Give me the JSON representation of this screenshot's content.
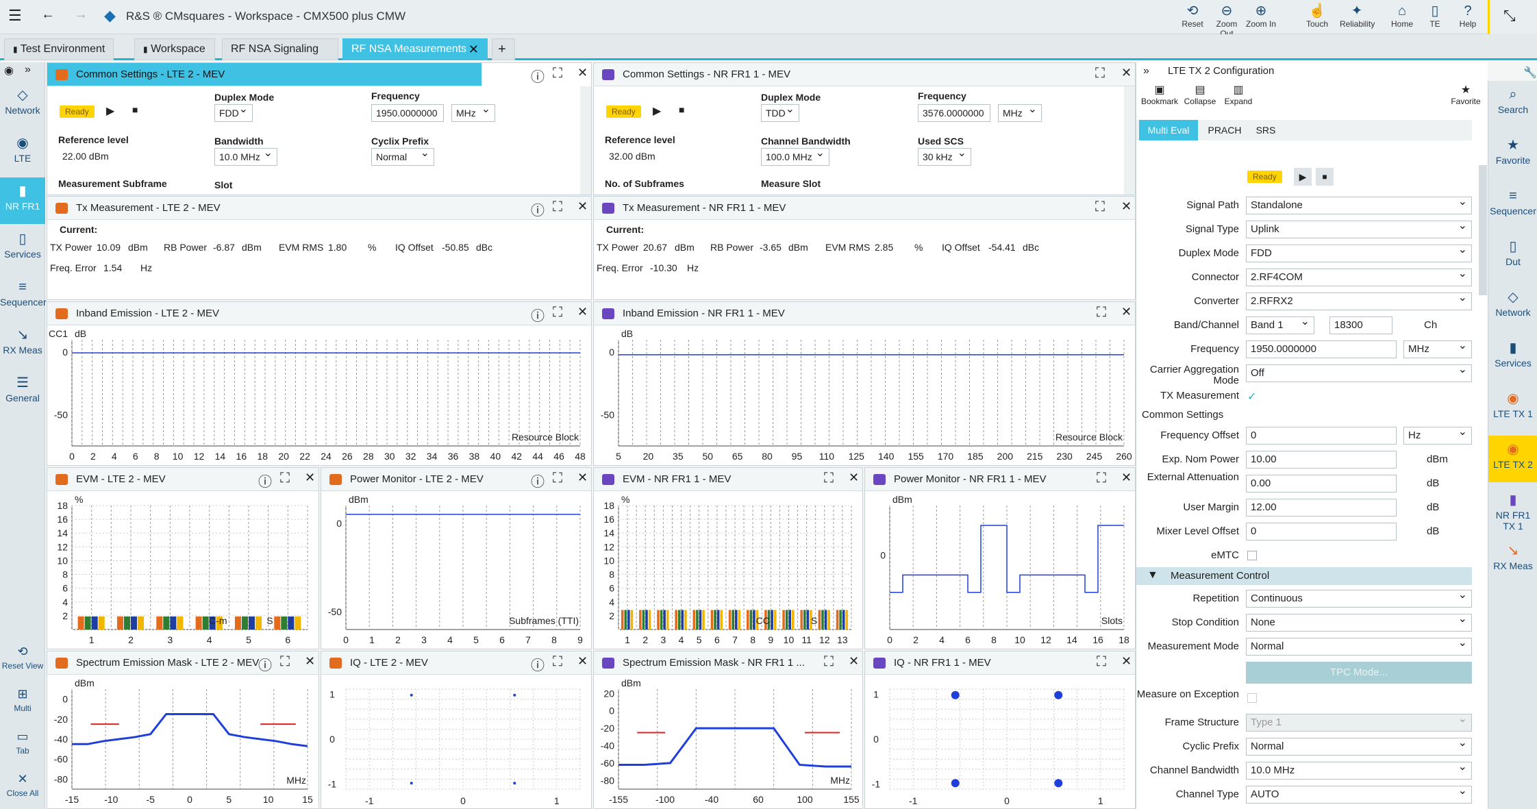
{
  "app": {
    "title": "R&S ® CMsquares - Workspace - CMX500 plus CMW"
  },
  "toolbar": [
    {
      "label": "Reset",
      "icon": "reset-icon",
      "g": "⟲"
    },
    {
      "label": "Zoom Out",
      "icon": "zoom-out-icon",
      "g": "⊖"
    },
    {
      "label": "Zoom In",
      "icon": "zoom-in-icon",
      "g": "⊕"
    },
    {
      "label": "Touch",
      "icon": "touch-icon",
      "g": "☝"
    },
    {
      "label": "Reliability",
      "icon": "reliability-icon",
      "g": "✦"
    },
    {
      "label": "Home",
      "icon": "home-icon",
      "g": "⌂"
    },
    {
      "label": "TE",
      "icon": "te-icon",
      "g": "▯"
    },
    {
      "label": "Help",
      "icon": "help-icon",
      "g": "?"
    }
  ],
  "tabs": [
    "Test Environment",
    "Workspace",
    "RF NSA Signaling",
    "RF NSA Measurements"
  ],
  "left_nav": [
    {
      "label": "Network",
      "g": "◇"
    },
    {
      "label": "LTE",
      "g": "◉"
    },
    {
      "label": "NR FR1",
      "g": "▮"
    },
    {
      "label": "Services",
      "g": "▯"
    },
    {
      "label": "Sequencer",
      "g": "≡"
    },
    {
      "label": "RX Meas",
      "g": "↘"
    },
    {
      "label": "General",
      "g": "☰"
    }
  ],
  "left_nav_bottom": [
    {
      "label": "Reset View",
      "g": "⟲"
    },
    {
      "label": "Multi",
      "g": "⊞"
    },
    {
      "label": "Tab",
      "g": "▭"
    },
    {
      "label": "Close All",
      "g": "✕"
    }
  ],
  "right_nav": [
    {
      "label": "Search",
      "g": "⌕"
    },
    {
      "label": "Favorite",
      "g": "★"
    },
    {
      "label": "Sequencer",
      "g": "≡"
    },
    {
      "label": "Dut",
      "g": "▯"
    },
    {
      "label": "Network",
      "g": "◇"
    },
    {
      "label": "Services",
      "g": "▮"
    },
    {
      "label": "LTE TX 1",
      "g": "◉"
    },
    {
      "label": "LTE TX 2",
      "g": "◉"
    },
    {
      "label": "NR FR1 TX 1",
      "g": "▮"
    },
    {
      "label": "RX Meas",
      "g": "↘"
    }
  ],
  "lte_common": {
    "title": "Common Settings - LTE 2 - MEV",
    "status": "Ready",
    "duplex_label": "Duplex Mode",
    "duplex": "FDD",
    "freq_label": "Frequency",
    "freq": "1950.0000000",
    "freq_unit": "MHz",
    "ref_label": "Reference level",
    "ref": "22.00 dBm",
    "bw_label": "Bandwidth",
    "bw": "10.0 MHz",
    "cp_label": "Cyclix Prefix",
    "cp": "Normal",
    "subframe_label": "Measurement Subframe",
    "slot_label": "Slot"
  },
  "nr_common": {
    "title": "Common Settings - NR FR1 1 - MEV",
    "status": "Ready",
    "duplex_label": "Duplex Mode",
    "duplex": "TDD",
    "freq_label": "Frequency",
    "freq": "3576.0000000",
    "freq_unit": "MHz",
    "ref_label": "Reference level",
    "ref": "32.00 dBm",
    "bw_label": "Channel Bandwidth",
    "bw": "100.0 MHz",
    "scs_label": "Used SCS",
    "scs": "30 kHz",
    "subframes_label": "No. of Subframes",
    "slot_label": "Measure Slot"
  },
  "lte_tx": {
    "title": "Tx Measurement - LTE 2 - MEV",
    "current": "Current:",
    "txp_l": "TX Power",
    "txp": "10.09",
    "txp_u": "dBm",
    "rbp_l": "RB Power",
    "rbp": "-6.87",
    "rbp_u": "dBm",
    "evm_l": "EVM RMS",
    "evm": "1.80",
    "evm_u": "%",
    "iq_l": "IQ Offset",
    "iq": "-50.85",
    "iq_u": "dBc",
    "fe_l": "Freq. Error",
    "fe": "1.54",
    "fe_u": "Hz"
  },
  "nr_tx": {
    "title": "Tx Measurement - NR FR1 1 - MEV",
    "current": "Current:",
    "txp_l": "TX Power",
    "txp": "20.67",
    "txp_u": "dBm",
    "rbp_l": "RB Power",
    "rbp": "-3.65",
    "rbp_u": "dBm",
    "evm_l": "EVM RMS",
    "evm": "2.85",
    "evm_u": "%",
    "iq_l": "IQ Offset",
    "iq": "-54.41",
    "iq_u": "dBc",
    "fe_l": "Freq. Error",
    "fe": "-10.30",
    "fe_u": "Hz"
  },
  "panels": {
    "lte_inband": "Inband Emission - LTE 2 - MEV",
    "nr_inband": "Inband Emission - NR FR1 1 - MEV",
    "lte_evm": "EVM - LTE 2 - MEV",
    "lte_power": "Power Monitor - LTE 2 - MEV",
    "nr_evm": "EVM - NR FR1 1 - MEV",
    "nr_power": "Power Monitor - NR FR1 1 - MEV",
    "lte_sem": "Spectrum Emission Mask - LTE 2 - MEV",
    "lte_iq": "IQ - LTE 2 - MEV",
    "nr_sem": "Spectrum Emission Mask - NR FR1 1 ...",
    "nr_iq": "IQ - NR FR1 1 - MEV"
  },
  "chart_data": [
    {
      "id": "lte_inband",
      "type": "line",
      "cc_label": "CC1",
      "yunit": "dB",
      "xlabel": "Resource Block",
      "xticks": [
        "0",
        "2",
        "4",
        "6",
        "8",
        "10",
        "12",
        "14",
        "16",
        "18",
        "20",
        "22",
        "24",
        "26",
        "28",
        "30",
        "32",
        "34",
        "36",
        "38",
        "40",
        "42",
        "44",
        "46",
        "48"
      ],
      "yticks": [
        "0",
        "-50"
      ],
      "ylim": [
        -75,
        10
      ],
      "series": [
        {
          "values": [
            -0.5,
            -0.5,
            -0.5,
            -0.5,
            -0.5,
            -0.5,
            -0.5,
            -0.5,
            -0.5,
            -0.5
          ]
        }
      ]
    },
    {
      "id": "nr_inband",
      "type": "line",
      "yunit": "dB",
      "xlabel": "Resource Block",
      "xticks": [
        "5",
        "20",
        "35",
        "50",
        "65",
        "80",
        "95",
        "110",
        "125",
        "140",
        "155",
        "170",
        "185",
        "200",
        "215",
        "230",
        "245",
        "260"
      ],
      "yticks": [
        "0",
        "-50"
      ],
      "ylim": [
        -75,
        10
      ],
      "series": [
        {
          "values": [
            -2,
            -2,
            -2,
            -2,
            -2,
            -2,
            -2,
            -2,
            -2,
            -2
          ]
        }
      ]
    },
    {
      "id": "lte_evm",
      "type": "bar",
      "yunit": "%",
      "xticks": [
        "1",
        "2",
        "3",
        "4",
        "5",
        "6"
      ],
      "yticks": [
        "18",
        "16",
        "14",
        "12",
        "10",
        "8",
        "6",
        "4",
        "2"
      ],
      "ylim": [
        0,
        19
      ],
      "overlay": [
        "C-m",
        "S"
      ],
      "series": [
        {
          "color": "#e36b1e",
          "values": [
            2,
            2,
            2,
            2,
            2,
            2
          ]
        },
        {
          "color": "#2e7d32",
          "values": [
            2,
            2,
            2,
            2,
            2,
            2
          ]
        },
        {
          "color": "#1e3fa0",
          "values": [
            2,
            2,
            2,
            2,
            2,
            2
          ]
        },
        {
          "color": "#f2b600",
          "values": [
            2,
            2,
            2,
            2,
            2,
            2
          ]
        }
      ]
    },
    {
      "id": "lte_power",
      "type": "line",
      "yunit": "dBm",
      "xlabel": "Subframes (TTI)",
      "xticks": [
        "0",
        "1",
        "2",
        "3",
        "4",
        "5",
        "6",
        "7",
        "8",
        "9"
      ],
      "yticks": [
        "0",
        "-50"
      ],
      "ylim": [
        -60,
        10
      ],
      "series": [
        {
          "values": [
            5,
            5,
            5,
            5,
            5,
            5,
            5,
            5,
            5,
            5
          ]
        }
      ]
    },
    {
      "id": "nr_evm",
      "type": "bar",
      "yunit": "%",
      "xticks": [
        "1",
        "2",
        "3",
        "4",
        "5",
        "6",
        "7",
        "8",
        "9",
        "10",
        "11",
        "12",
        "13"
      ],
      "yticks": [
        "18",
        "16",
        "14",
        "12",
        "10",
        "8",
        "6",
        "4",
        "2"
      ],
      "ylim": [
        0,
        19
      ],
      "overlay": [
        "CC",
        "S"
      ],
      "series": [
        {
          "color": "#e36b1e",
          "values": [
            3,
            3,
            3,
            3,
            3,
            3,
            3,
            3,
            3,
            3,
            3,
            3,
            3
          ]
        },
        {
          "color": "#2e7d32",
          "values": [
            3,
            3,
            3,
            3,
            3,
            3,
            3,
            3,
            3,
            3,
            3,
            3,
            3
          ]
        },
        {
          "color": "#1e3fa0",
          "values": [
            3,
            3,
            3,
            3,
            3,
            3,
            3,
            3,
            3,
            3,
            3,
            3,
            3
          ]
        },
        {
          "color": "#f2b600",
          "values": [
            3,
            3,
            3,
            3,
            3,
            3,
            3,
            3,
            3,
            3,
            3,
            3,
            3
          ]
        }
      ]
    },
    {
      "id": "nr_power",
      "type": "line",
      "yunit": "dBm",
      "xlabel": "Slots",
      "xticks": [
        "0",
        "2",
        "4",
        "6",
        "8",
        "10",
        "12",
        "14",
        "16",
        "18"
      ],
      "yticks": [
        "0"
      ],
      "ylim": [
        -30,
        20
      ],
      "series": [
        {
          "values": [
            -15,
            -8,
            -8,
            -8,
            -8,
            -8,
            -15,
            12,
            12,
            -15,
            -8,
            -8,
            -8,
            -8,
            -8,
            -15,
            12,
            12,
            12
          ]
        }
      ]
    },
    {
      "id": "lte_sem",
      "type": "line",
      "yunit": "dBm",
      "xlabel": "MHz",
      "xticks": [
        "-15",
        "-10",
        "-5",
        "0",
        "5",
        "10",
        "15"
      ],
      "yticks": [
        "0",
        "-20",
        "-40",
        "-60",
        "-80"
      ],
      "ylim": [
        -90,
        10
      ],
      "series": [
        {
          "name": "",
          "values": [
            -45,
            -45,
            -42,
            -40,
            -38,
            -35,
            -15,
            -15,
            -15,
            -15,
            -35,
            -38,
            -40,
            -42,
            -45,
            -47
          ]
        }
      ]
    },
    {
      "id": "lte_iq",
      "type": "scatter",
      "xticks": [
        "-1",
        "0",
        "1"
      ],
      "yticks": [
        "1",
        "0",
        "-1"
      ]
    },
    {
      "id": "nr_sem",
      "type": "line",
      "yunit": "dBm",
      "xlabel": "MHz",
      "xticks": [
        "-155",
        "-100",
        "-40",
        "60",
        "100",
        "155"
      ],
      "yticks": [
        "20",
        "0",
        "-20",
        "-40",
        "-60",
        "-80"
      ],
      "ylim": [
        -90,
        25
      ],
      "series": [
        {
          "values": [
            -62,
            -62,
            -60,
            -20,
            -20,
            -20,
            -20,
            -62,
            -64,
            -64
          ]
        }
      ]
    },
    {
      "id": "nr_iq",
      "type": "scatter",
      "xticks": [
        "-1",
        "0",
        "1"
      ],
      "yticks": [
        "1",
        "0",
        "-1"
      ]
    }
  ],
  "config": {
    "title": "LTE TX 2 Configuration",
    "bookmark": "Bookmark",
    "collapse": "Collapse",
    "expand": "Expand",
    "favorite": "Favorite",
    "tabs": [
      "Multi Eval",
      "PRACH",
      "SRS"
    ],
    "status": "Ready",
    "rows": [
      {
        "label": "Signal Path",
        "value": "Standalone"
      },
      {
        "label": "Signal Type",
        "value": "Uplink"
      },
      {
        "label": "Duplex Mode",
        "value": "FDD"
      },
      {
        "label": "Connector",
        "value": "2.RF4COM"
      },
      {
        "label": "Converter",
        "value": "2.RFRX2"
      }
    ],
    "band_label": "Band/Channel",
    "band": "Band 1",
    "channel": "18300",
    "ch_unit": "Ch",
    "freq_label": "Frequency",
    "freq": "1950.0000000",
    "freq_unit": "MHz",
    "ca_label": "Carrier Aggregation Mode",
    "ca": "Off",
    "txm_label": "TX Measurement",
    "common_settings": "Common Settings",
    "cs_rows": [
      {
        "label": "Frequency Offset",
        "value": "0",
        "unit": "Hz"
      },
      {
        "label": "Exp. Nom Power",
        "value": "10.00",
        "unit": "dBm"
      },
      {
        "label": "External Attenuation",
        "value": "0.00",
        "unit": "dB"
      },
      {
        "label": "User Margin",
        "value": "12.00",
        "unit": "dB"
      },
      {
        "label": "Mixer Level Offset",
        "value": "0",
        "unit": "dB"
      }
    ],
    "emtc_label": "eMTC",
    "meas_control": "Measurement Control",
    "mc_rows": [
      {
        "label": "Repetition",
        "value": "Continuous"
      },
      {
        "label": "Stop Condition",
        "value": "None"
      },
      {
        "label": "Measurement Mode",
        "value": "Normal"
      }
    ],
    "tpc": "TPC Mode...",
    "moe_label": "Measure on Exception",
    "tail_rows": [
      {
        "label": "Frame Structure",
        "value": "Type 1"
      },
      {
        "label": "Cyclic Prefix",
        "value": "Normal"
      },
      {
        "label": "Channel Bandwidth",
        "value": "10.0 MHz"
      },
      {
        "label": "Channel Type",
        "value": "AUTO"
      }
    ]
  }
}
